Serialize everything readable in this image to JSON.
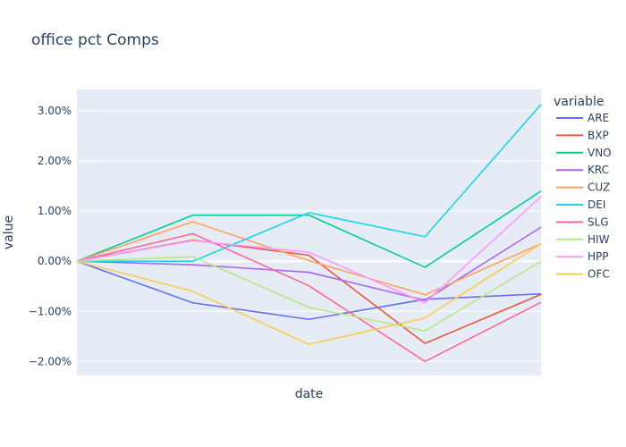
{
  "chart_data": {
    "type": "line",
    "title": "office pct Comps",
    "xlabel": "date",
    "ylabel": "value",
    "legend_title": "variable",
    "legend_position": "right",
    "grid": true,
    "ylim": [
      -0.0228,
      0.0343
    ],
    "x": [
      0,
      1,
      2,
      3,
      4
    ],
    "y_ticks": [
      {
        "value": -0.02,
        "label": "−2.00%"
      },
      {
        "value": -0.01,
        "label": "−1.00%"
      },
      {
        "value": 0.0,
        "label": "0.00%"
      },
      {
        "value": 0.01,
        "label": "1.00%"
      },
      {
        "value": 0.02,
        "label": "2.00%"
      },
      {
        "value": 0.03,
        "label": "3.00%"
      }
    ],
    "series": [
      {
        "name": "ARE",
        "color": "#636efa",
        "values": [
          0,
          -0.0083,
          -0.0116,
          -0.0076,
          -0.0065
        ]
      },
      {
        "name": "BXP",
        "color": "#EF553B",
        "values": [
          0,
          0.0042,
          0.0012,
          -0.0164,
          -0.0066
        ]
      },
      {
        "name": "VNO",
        "color": "#00cc96",
        "values": [
          0,
          0.0092,
          0.0092,
          -0.0012,
          0.014
        ]
      },
      {
        "name": "KRC",
        "color": "#ab63fa",
        "values": [
          0,
          -0.0007,
          -0.0022,
          -0.0078,
          0.0068
        ]
      },
      {
        "name": "CUZ",
        "color": "#FFA15A",
        "values": [
          0,
          0.0079,
          0.0001,
          -0.0067,
          0.0035
        ]
      },
      {
        "name": "DEI",
        "color": "#19d3f3",
        "values": [
          0,
          0.0,
          0.0097,
          0.0049,
          0.0313
        ]
      },
      {
        "name": "SLG",
        "color": "#FF6692",
        "values": [
          0,
          0.0055,
          -0.0049,
          -0.02,
          -0.0082
        ]
      },
      {
        "name": "HIW",
        "color": "#B6E880",
        "values": [
          0,
          0.0009,
          -0.0092,
          -0.0139,
          0.0
        ]
      },
      {
        "name": "HPP",
        "color": "#FF97FF",
        "values": [
          0,
          0.0041,
          0.0018,
          -0.0083,
          0.0129
        ]
      },
      {
        "name": "OFC",
        "color": "#FECB52",
        "values": [
          0,
          -0.006,
          -0.0166,
          -0.0113,
          0.0035
        ]
      }
    ]
  }
}
